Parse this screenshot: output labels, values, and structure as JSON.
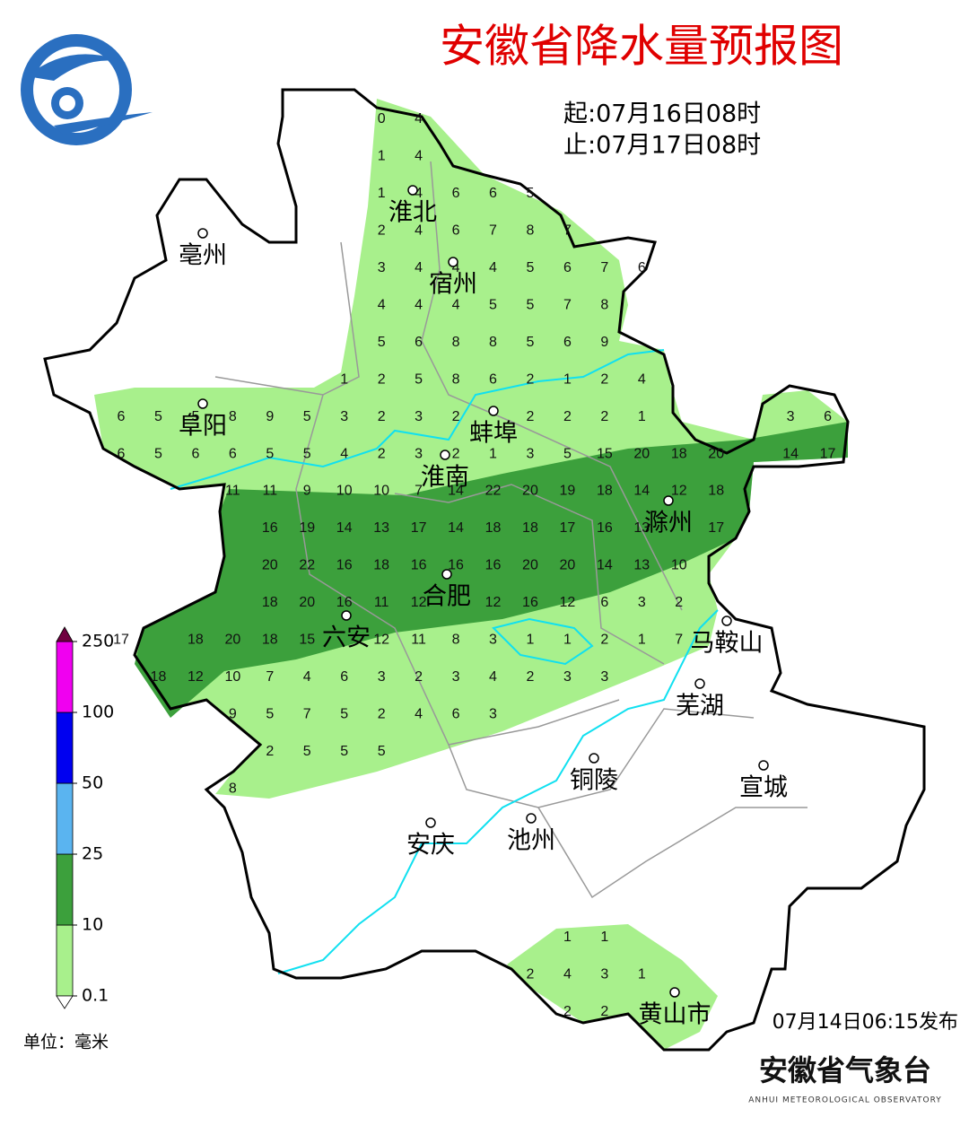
{
  "title": "安徽省降水量预报图",
  "period": {
    "start": "起:07月16日08时",
    "end": "止:07月17日08时"
  },
  "grid": [
    [
      null,
      null,
      null,
      null,
      null,
      null,
      null,
      0,
      4
    ],
    [
      null,
      null,
      null,
      null,
      null,
      null,
      null,
      1,
      4
    ],
    [
      null,
      null,
      null,
      null,
      null,
      null,
      null,
      1,
      4,
      6,
      6,
      5
    ],
    [
      null,
      null,
      null,
      null,
      null,
      null,
      null,
      2,
      4,
      6,
      7,
      8,
      7
    ],
    [
      null,
      null,
      null,
      null,
      null,
      null,
      null,
      3,
      4,
      4,
      4,
      5,
      6,
      7,
      6
    ],
    [
      null,
      null,
      null,
      null,
      null,
      null,
      null,
      4,
      4,
      4,
      5,
      5,
      7,
      8
    ],
    [
      null,
      null,
      null,
      null,
      null,
      null,
      null,
      5,
      6,
      8,
      8,
      5,
      6,
      9
    ],
    [
      null,
      null,
      null,
      null,
      null,
      null,
      1,
      2,
      5,
      8,
      6,
      2,
      1,
      2,
      4
    ],
    [
      6,
      5,
      5,
      8,
      9,
      5,
      3,
      2,
      3,
      2,
      null,
      2,
      2,
      2,
      1,
      null,
      null,
      null,
      3,
      6
    ],
    [
      6,
      5,
      6,
      6,
      5,
      5,
      4,
      2,
      3,
      2,
      1,
      3,
      5,
      15,
      20,
      18,
      20,
      null,
      14,
      17
    ],
    [
      null,
      null,
      null,
      11,
      11,
      9,
      10,
      10,
      7,
      14,
      22,
      20,
      19,
      18,
      14,
      12,
      18
    ],
    [
      null,
      null,
      null,
      null,
      16,
      19,
      14,
      13,
      17,
      14,
      18,
      18,
      17,
      16,
      13,
      null,
      17
    ],
    [
      null,
      null,
      null,
      null,
      20,
      22,
      16,
      18,
      16,
      16,
      16,
      20,
      20,
      14,
      13,
      10
    ],
    [
      null,
      null,
      null,
      null,
      18,
      20,
      16,
      11,
      12,
      null,
      12,
      16,
      12,
      6,
      3,
      2
    ],
    [
      17,
      null,
      18,
      20,
      18,
      15,
      null,
      12,
      11,
      8,
      3,
      1,
      1,
      2,
      1,
      7
    ],
    [
      null,
      18,
      12,
      10,
      7,
      4,
      6,
      3,
      2,
      3,
      4,
      2,
      3,
      3
    ],
    [
      null,
      null,
      null,
      9,
      5,
      7,
      5,
      2,
      4,
      6,
      3
    ],
    [
      null,
      null,
      null,
      null,
      2,
      5,
      5,
      5
    ],
    [
      null,
      null,
      null,
      8
    ],
    [],
    [],
    [],
    [
      null,
      null,
      null,
      null,
      null,
      null,
      null,
      null,
      null,
      null,
      null,
      null,
      1,
      1
    ],
    [
      null,
      null,
      null,
      null,
      null,
      null,
      null,
      null,
      null,
      null,
      null,
      2,
      4,
      3,
      1
    ],
    [
      null,
      null,
      null,
      null,
      null,
      null,
      null,
      null,
      null,
      null,
      null,
      null,
      2,
      2
    ]
  ],
  "cities": [
    "淮北",
    "亳州",
    "宿州",
    "阜阳",
    "蚌埠",
    "淮南",
    "滁州",
    "合肥",
    "六安",
    "马鞍山",
    "芜湖",
    "宣城",
    "铜陵",
    "池州",
    "安庆",
    "黄山市"
  ],
  "legend": {
    "levels": [
      0.1,
      10,
      25,
      50,
      100,
      250
    ],
    "colors": [
      "#ffffff",
      "#a8f08c",
      "#3ca03c",
      "#5ab4f0",
      "#0000f0",
      "#f000f0",
      "#700040"
    ],
    "unit": "单位：毫米"
  },
  "release": "07月14日06:15发布",
  "issuer": {
    "name": "安徽省气象台",
    "name_en": "ANHUI METEOROLOGICAL OBSERVATORY"
  }
}
